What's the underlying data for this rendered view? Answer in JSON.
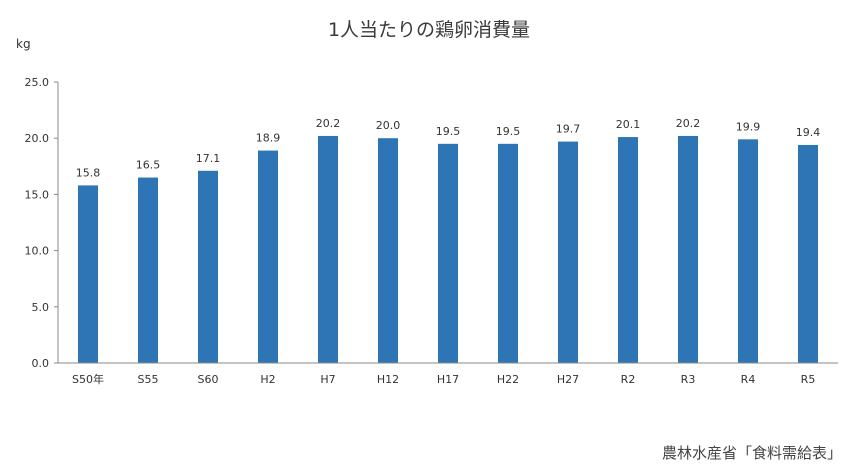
{
  "chart_data": {
    "type": "bar",
    "title": "1人当たりの鶏卵消費量",
    "ylabel": "kg",
    "ylim": [
      0,
      25
    ],
    "yticks": [
      "0.0",
      "5.0",
      "10.0",
      "15.0",
      "20.0",
      "25.0"
    ],
    "categories": [
      "S50年",
      "S55",
      "S60",
      "H2",
      "H7",
      "H12",
      "H17",
      "H22",
      "H27",
      "R2",
      "R3",
      "R4",
      "R5"
    ],
    "values": [
      15.8,
      16.5,
      17.1,
      18.9,
      20.2,
      20.0,
      19.5,
      19.5,
      19.7,
      20.1,
      20.2,
      19.9,
      19.4
    ],
    "value_labels": [
      "15.8",
      "16.5",
      "17.1",
      "18.9",
      "20.2",
      "20.0",
      "19.5",
      "19.5",
      "19.7",
      "20.1",
      "20.2",
      "19.9",
      "19.4"
    ],
    "bar_color": "#2e75b6",
    "grid": false,
    "legend": "none"
  },
  "source": "農林水産省「食料需給表」"
}
